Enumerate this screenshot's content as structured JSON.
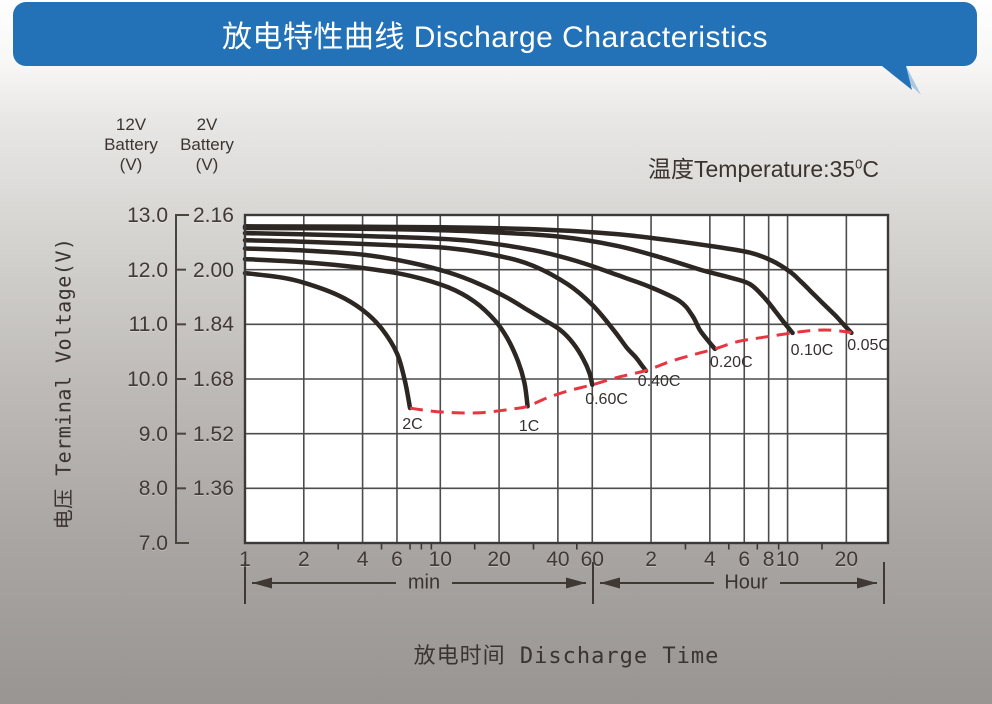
{
  "header": {
    "title": "放电特性曲线 Discharge Characteristics",
    "banner_color": "#2372b8"
  },
  "annotations": {
    "temperature_prefix": "温度Temperature:",
    "temperature_value": "35",
    "temperature_sup": "0",
    "temperature_unit": "C"
  },
  "axes": {
    "left_scale_header": {
      "line1": "12V",
      "line2": "Battery",
      "line3": "(V)"
    },
    "right_scale_header": {
      "line1": "2V",
      "line2": "Battery",
      "line3": "(V)"
    },
    "y_title": "电压 Terminal Voltage(V)",
    "x_title": "放电时间 Discharge Time",
    "v12_labels": [
      "13.0",
      "12.0",
      "11.0",
      "10.0",
      "9.0",
      "8.0",
      "7.0"
    ],
    "v2_labels": [
      "2.16",
      "2.00",
      "1.84",
      "1.68",
      "1.52",
      "1.36"
    ],
    "min_unit_label": "min",
    "hour_unit_label": "Hour"
  },
  "chart_data": {
    "type": "line",
    "title": "放电特性曲线 Discharge Characteristics",
    "x_scale": "log",
    "x_unit": "minutes",
    "x_range_minutes": [
      1,
      1965
    ],
    "y2_range": [
      1.2,
      2.16
    ],
    "y12_range": [
      7.0,
      13.0
    ],
    "grid": true,
    "curve_color": "#2d2724",
    "x_ticks": [
      {
        "label": "1",
        "minutes": 1
      },
      {
        "label": "2",
        "minutes": 2
      },
      {
        "label": "4",
        "minutes": 4
      },
      {
        "label": "6",
        "minutes": 6
      },
      {
        "label": "10",
        "minutes": 10
      },
      {
        "label": "20",
        "minutes": 20
      },
      {
        "label": "40",
        "minutes": 40
      },
      {
        "label": "60",
        "minutes": 60
      },
      {
        "label": "2",
        "minutes": 120
      },
      {
        "label": "4",
        "minutes": 240
      },
      {
        "label": "6",
        "minutes": 360
      },
      {
        "label": "8",
        "minutes": 480
      },
      {
        "label": "10",
        "minutes": 600
      },
      {
        "label": "20",
        "minutes": 1200
      }
    ],
    "minor_ticks_minutes": [
      3,
      5,
      7,
      8,
      9,
      15,
      30,
      50,
      180,
      300,
      420,
      540,
      900
    ],
    "series": [
      {
        "name": "2C",
        "label_pos": [
          7.2,
          1.545
        ],
        "points": [
          [
            1,
            1.99
          ],
          [
            1.5,
            1.978
          ],
          [
            2,
            1.962
          ],
          [
            3,
            1.925
          ],
          [
            4,
            1.882
          ],
          [
            5,
            1.828
          ],
          [
            6,
            1.755
          ],
          [
            6.6,
            1.672
          ],
          [
            7,
            1.595
          ]
        ]
      },
      {
        "name": "1C",
        "label_pos": [
          28.5,
          1.54
        ],
        "points": [
          [
            1,
            2.031
          ],
          [
            2,
            2.022
          ],
          [
            4,
            2.005
          ],
          [
            7,
            1.982
          ],
          [
            11,
            1.948
          ],
          [
            15,
            1.906
          ],
          [
            19,
            1.852
          ],
          [
            22,
            1.8
          ],
          [
            25,
            1.732
          ],
          [
            27,
            1.668
          ],
          [
            28,
            1.6
          ]
        ]
      },
      {
        "name": "0.60C",
        "label_pos": [
          71,
          1.62
        ],
        "points": [
          [
            1,
            2.062
          ],
          [
            2,
            2.056
          ],
          [
            4,
            2.044
          ],
          [
            7,
            2.021
          ],
          [
            11,
            1.992
          ],
          [
            16,
            1.957
          ],
          [
            22,
            1.918
          ],
          [
            28,
            1.882
          ],
          [
            34,
            1.853
          ],
          [
            41,
            1.824
          ],
          [
            48,
            1.784
          ],
          [
            54,
            1.738
          ],
          [
            58,
            1.698
          ],
          [
            60,
            1.663
          ]
        ]
      },
      {
        "name": "0.40C",
        "label_pos": [
          132,
          1.67
        ],
        "points": [
          [
            1,
            2.086
          ],
          [
            2,
            2.082
          ],
          [
            5,
            2.073
          ],
          [
            11,
            2.063
          ],
          [
            20,
            2.04
          ],
          [
            30,
            2.011
          ],
          [
            45,
            1.957
          ],
          [
            60,
            1.897
          ],
          [
            77,
            1.824
          ],
          [
            90,
            1.772
          ],
          [
            100,
            1.744
          ],
          [
            108,
            1.719
          ],
          [
            113,
            1.704
          ]
        ]
      },
      {
        "name": "0.20C",
        "label_pos": [
          309,
          1.728
        ],
        "points": [
          [
            1,
            2.107
          ],
          [
            3,
            2.101
          ],
          [
            8,
            2.093
          ],
          [
            15,
            2.083
          ],
          [
            30,
            2.057
          ],
          [
            50,
            2.025
          ],
          [
            80,
            1.985
          ],
          [
            120,
            1.948
          ],
          [
            168,
            1.908
          ],
          [
            195,
            1.866
          ],
          [
            213,
            1.824
          ],
          [
            235,
            1.792
          ],
          [
            247,
            1.777
          ],
          [
            255,
            1.768
          ]
        ]
      },
      {
        "name": "0.10C",
        "label_pos": [
          800,
          1.763
        ],
        "points": [
          [
            1,
            2.122
          ],
          [
            5,
            2.119
          ],
          [
            15,
            2.112
          ],
          [
            40,
            2.097
          ],
          [
            80,
            2.07
          ],
          [
            140,
            2.033
          ],
          [
            220,
            1.998
          ],
          [
            300,
            1.978
          ],
          [
            384,
            1.958
          ],
          [
            460,
            1.916
          ],
          [
            520,
            1.878
          ],
          [
            580,
            1.843
          ],
          [
            637,
            1.815
          ]
        ]
      },
      {
        "name": "0.05C",
        "label_pos": [
          1560,
          1.778
        ],
        "points": [
          [
            1,
            2.127
          ],
          [
            10,
            2.124
          ],
          [
            35,
            2.117
          ],
          [
            80,
            2.104
          ],
          [
            150,
            2.086
          ],
          [
            250,
            2.068
          ],
          [
            384,
            2.05
          ],
          [
            500,
            2.026
          ],
          [
            620,
            1.993
          ],
          [
            700,
            1.966
          ],
          [
            778,
            1.94
          ],
          [
            900,
            1.904
          ],
          [
            1050,
            1.867
          ],
          [
            1160,
            1.84
          ],
          [
            1274,
            1.815
          ]
        ]
      }
    ],
    "cutoff_line": {
      "name": "cutoff-voltage-line",
      "color": "#e63741",
      "style": "dashed",
      "points": [
        [
          7,
          1.595
        ],
        [
          9,
          1.586
        ],
        [
          12,
          1.581
        ],
        [
          16,
          1.581
        ],
        [
          20,
          1.587
        ],
        [
          24,
          1.593
        ],
        [
          28,
          1.6
        ],
        [
          35,
          1.624
        ],
        [
          45,
          1.645
        ],
        [
          60,
          1.663
        ],
        [
          80,
          1.684
        ],
        [
          113,
          1.705
        ],
        [
          150,
          1.731
        ],
        [
          200,
          1.752
        ],
        [
          255,
          1.768
        ],
        [
          330,
          1.789
        ],
        [
          450,
          1.802
        ],
        [
          637,
          1.815
        ],
        [
          800,
          1.822
        ],
        [
          1000,
          1.823
        ],
        [
          1274,
          1.816
        ]
      ]
    }
  }
}
